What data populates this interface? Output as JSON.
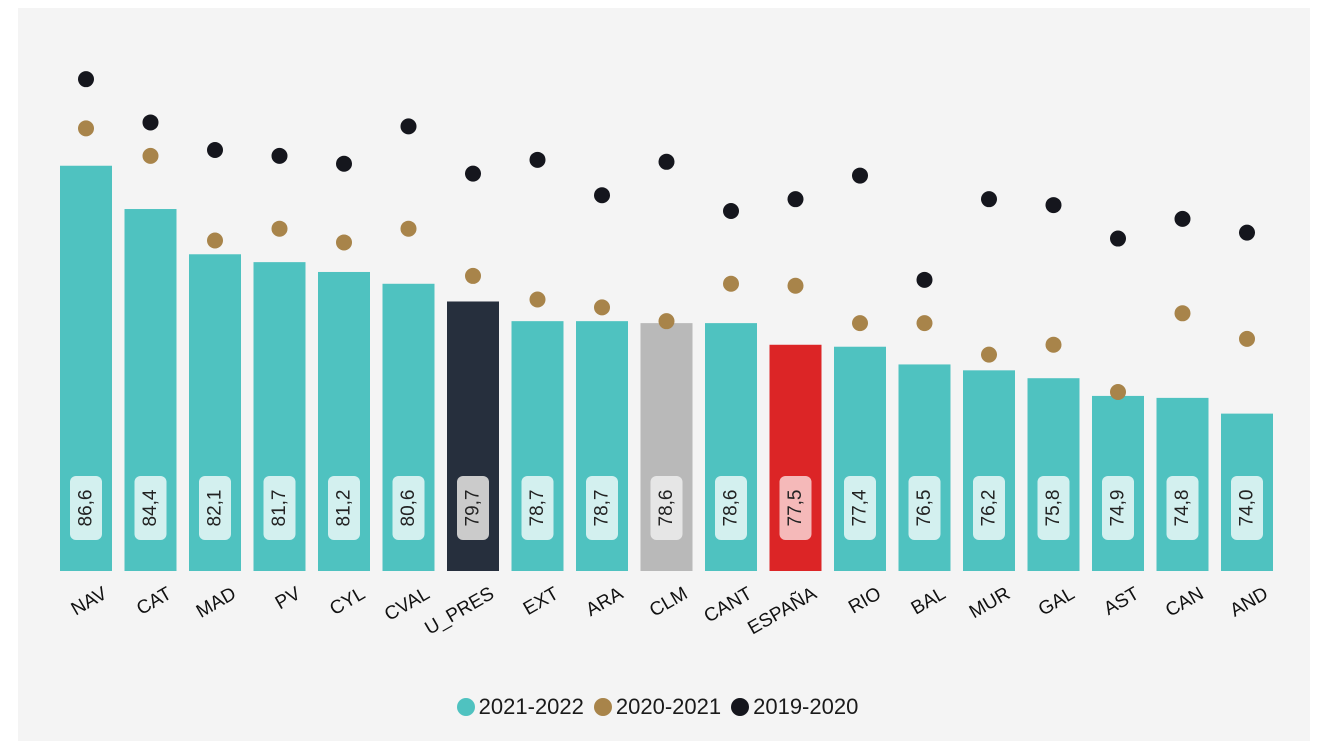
{
  "chart_data": {
    "type": "bar",
    "categories": [
      "NAV",
      "CAT",
      "MAD",
      "PV",
      "CYL",
      "CVAL",
      "U_PRES",
      "EXT",
      "ARA",
      "CLM",
      "CANT",
      "ESPAÑA",
      "RIO",
      "BAL",
      "MUR",
      "GAL",
      "AST",
      "CAN",
      "AND"
    ],
    "value_labels": [
      "86,6",
      "84,4",
      "82,1",
      "81,7",
      "81,2",
      "80,6",
      "79,7",
      "78,7",
      "78,7",
      "78,6",
      "78,6",
      "77,5",
      "77,4",
      "76,5",
      "76,2",
      "75,8",
      "74,9",
      "74,8",
      "74,0"
    ],
    "series": [
      {
        "name": "2021-2022",
        "values": [
          86.6,
          84.4,
          82.1,
          81.7,
          81.2,
          80.6,
          79.7,
          78.7,
          78.7,
          78.6,
          78.6,
          77.5,
          77.4,
          76.5,
          76.2,
          75.8,
          74.9,
          74.8,
          74.0
        ]
      },
      {
        "name": "2020-2021",
        "values": [
          88.5,
          87.1,
          82.8,
          83.4,
          82.7,
          83.4,
          81.0,
          79.8,
          79.4,
          78.7,
          80.6,
          80.5,
          78.6,
          78.6,
          77.0,
          77.5,
          75.1,
          79.1,
          77.8
        ]
      },
      {
        "name": "2019-2020",
        "values": [
          91.0,
          88.8,
          87.4,
          87.1,
          86.7,
          88.6,
          86.2,
          86.9,
          85.1,
          86.8,
          84.3,
          84.9,
          86.1,
          80.8,
          84.9,
          84.6,
          82.9,
          83.9,
          83.2
        ]
      }
    ],
    "ylim": [
      66.0,
      93.5
    ],
    "grid": false,
    "legend_position": "bottom",
    "colors": {
      "2021-2022": "#4fc2c0",
      "2020-2021": "#a8844a",
      "2019-2020": "#15161d",
      "highlight_U_PRES": "#262f3d",
      "highlight_CLM": "#b9b9b9",
      "highlight_ESPAÑA": "#dc2526",
      "label_box": "#d3f0ef",
      "label_box_U_PRES": "#cbcbcb",
      "label_box_CLM": "#e6e6e6",
      "label_box_ESPAÑA": "#f5b9b9"
    }
  }
}
